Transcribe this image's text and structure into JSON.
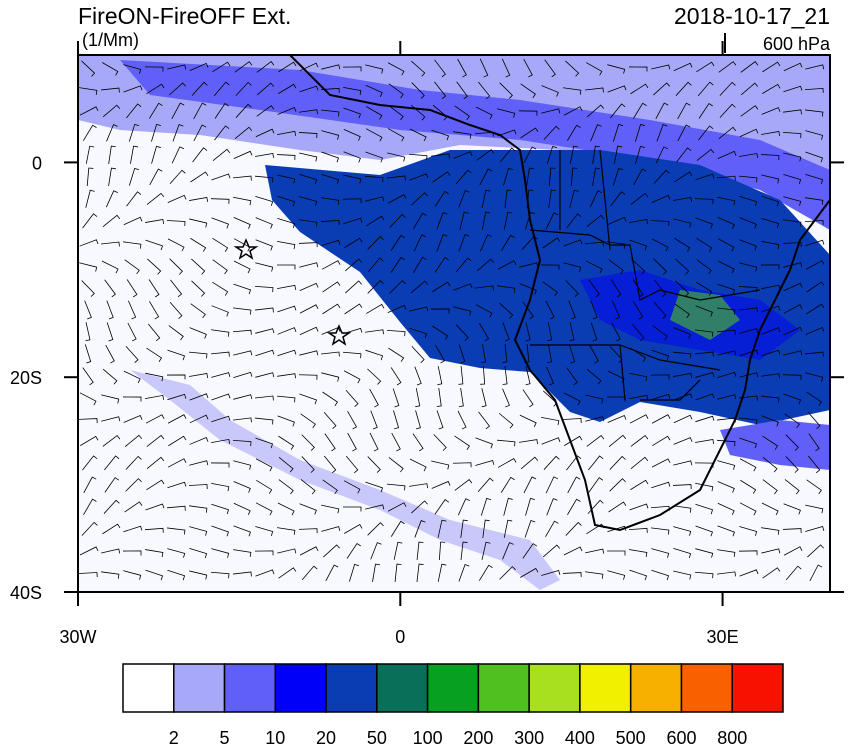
{
  "header": {
    "title": "FireON-FireOFF Ext.",
    "units": "(1/Mm)",
    "date": "2018-10-17_21",
    "level": "600 hPa"
  },
  "map": {
    "xlim": [
      -30,
      40
    ],
    "ylim": [
      -40,
      10
    ],
    "xticks": [
      {
        "value": -30,
        "label": "30W"
      },
      {
        "value": 0,
        "label": "0"
      },
      {
        "value": 30,
        "label": "30E"
      }
    ],
    "yticks": [
      {
        "value": 0,
        "label": "0"
      },
      {
        "value": -20,
        "label": "20S"
      },
      {
        "value": -40,
        "label": "40S"
      }
    ]
  },
  "colorbar": {
    "labels": [
      2,
      5,
      10,
      20,
      50,
      100,
      200,
      300,
      400,
      500,
      600,
      800
    ],
    "colors": [
      "#ffffff",
      "#a8a8f8",
      "#6060f8",
      "#0000f8",
      "#0a3cb4",
      "#087058",
      "#08a020",
      "#50c020",
      "#a8e020",
      "#f0f000",
      "#f8b000",
      "#f86000",
      "#f81000"
    ]
  }
}
